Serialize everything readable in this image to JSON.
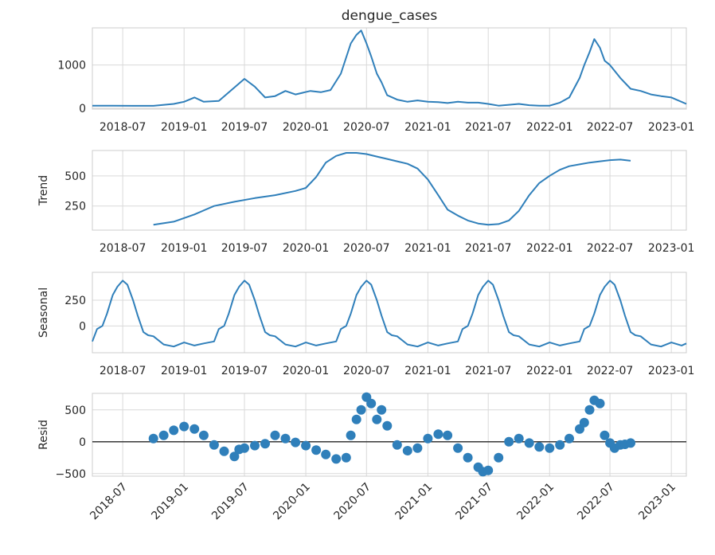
{
  "figure": {
    "title": "dengue_cases",
    "line_color": "#2f7fba",
    "grid_color": "#d9d9d9",
    "spine_color": "#cccccc",
    "zero_line_color": "#262626"
  },
  "x_ticks": [
    "2018-07",
    "2019-01",
    "2019-07",
    "2020-01",
    "2020-07",
    "2021-01",
    "2021-07",
    "2022-01",
    "2022-07",
    "2023-01"
  ],
  "chart_data": [
    {
      "type": "line",
      "panel": "observed",
      "title": "dengue_cases",
      "ylabel": "",
      "xlim": [
        "2018-04-01",
        "2023-02-15"
      ],
      "ylim": [
        -20,
        1860
      ],
      "yticks": [
        0,
        1000
      ],
      "x": [
        "2018-04-01",
        "2018-06-01",
        "2018-08-01",
        "2018-10-01",
        "2018-12-01",
        "2019-01-01",
        "2019-02-01",
        "2019-03-01",
        "2019-04-15",
        "2019-06-01",
        "2019-07-01",
        "2019-08-01",
        "2019-09-01",
        "2019-10-01",
        "2019-11-01",
        "2019-12-01",
        "2020-01-15",
        "2020-02-15",
        "2020-03-15",
        "2020-04-15",
        "2020-05-15",
        "2020-06-01",
        "2020-06-15",
        "2020-07-01",
        "2020-07-15",
        "2020-08-01",
        "2020-08-15",
        "2020-09-01",
        "2020-10-01",
        "2020-11-01",
        "2020-12-01",
        "2021-01-01",
        "2021-02-01",
        "2021-03-01",
        "2021-04-01",
        "2021-05-01",
        "2021-06-01",
        "2021-07-01",
        "2021-08-01",
        "2021-09-01",
        "2021-10-01",
        "2021-11-01",
        "2021-12-01",
        "2022-01-01",
        "2022-02-01",
        "2022-03-01",
        "2022-04-01",
        "2022-04-15",
        "2022-05-01",
        "2022-05-15",
        "2022-06-01",
        "2022-06-15",
        "2022-07-01",
        "2022-08-01",
        "2022-09-01",
        "2022-10-01",
        "2022-11-01",
        "2022-12-01",
        "2023-01-01",
        "2023-02-15"
      ],
      "series": [
        {
          "values": [
            60,
            60,
            55,
            55,
            100,
            150,
            250,
            150,
            170,
            480,
            680,
            500,
            250,
            280,
            400,
            320,
            400,
            370,
            420,
            800,
            1500,
            1700,
            1800,
            1500,
            1200,
            800,
            600,
            300,
            200,
            150,
            180,
            150,
            140,
            120,
            150,
            130,
            130,
            100,
            60,
            80,
            100,
            70,
            60,
            60,
            130,
            250,
            700,
            1000,
            1300,
            1600,
            1400,
            1100,
            1000,
            700,
            450,
            400,
            320,
            280,
            250,
            100
          ]
        }
      ]
    },
    {
      "type": "line",
      "panel": "trend",
      "ylabel": "Trend",
      "xlim": [
        "2018-04-01",
        "2023-02-15"
      ],
      "ylim": [
        50,
        710
      ],
      "yticks": [
        250,
        500
      ],
      "x": [
        "2018-10-01",
        "2018-12-01",
        "2019-02-01",
        "2019-04-01",
        "2019-06-01",
        "2019-08-01",
        "2019-10-01",
        "2019-12-01",
        "2020-01-01",
        "2020-02-01",
        "2020-03-01",
        "2020-04-01",
        "2020-05-01",
        "2020-06-01",
        "2020-07-01",
        "2020-08-01",
        "2020-09-01",
        "2020-10-01",
        "2020-11-01",
        "2020-12-01",
        "2021-01-01",
        "2021-02-01",
        "2021-03-01",
        "2021-04-01",
        "2021-05-01",
        "2021-06-01",
        "2021-07-01",
        "2021-08-01",
        "2021-09-01",
        "2021-10-01",
        "2021-11-01",
        "2021-12-01",
        "2022-01-01",
        "2022-02-01",
        "2022-03-01",
        "2022-04-01",
        "2022-05-01",
        "2022-06-01",
        "2022-07-01",
        "2022-08-01",
        "2022-09-01"
      ],
      "series": [
        {
          "values": [
            95,
            120,
            180,
            250,
            285,
            315,
            340,
            375,
            400,
            490,
            610,
            665,
            690,
            690,
            680,
            660,
            640,
            620,
            600,
            560,
            470,
            340,
            220,
            170,
            130,
            105,
            95,
            100,
            130,
            210,
            340,
            440,
            500,
            550,
            580,
            595,
            610,
            620,
            630,
            635,
            625
          ]
        }
      ]
    },
    {
      "type": "line",
      "panel": "seasonal",
      "ylabel": "Seasonal",
      "xlim": [
        "2018-04-01",
        "2023-02-15"
      ],
      "ylim": [
        -260,
        520
      ],
      "yticks": [
        0,
        250
      ],
      "x": [
        "2018-04-01",
        "2018-04-15",
        "2018-05-01",
        "2018-05-15",
        "2018-06-01",
        "2018-06-15",
        "2018-07-01",
        "2018-07-15",
        "2018-08-01",
        "2018-08-15",
        "2018-09-01",
        "2018-09-15",
        "2018-10-01",
        "2018-11-01",
        "2018-12-01",
        "2019-01-01",
        "2019-02-01",
        "2019-03-01",
        "2019-04-01",
        "2019-04-15",
        "2019-05-01",
        "2019-05-15",
        "2019-06-01",
        "2019-06-15",
        "2019-07-01",
        "2019-07-15",
        "2019-08-01",
        "2019-08-15",
        "2019-09-01",
        "2019-09-15",
        "2019-10-01",
        "2019-11-01",
        "2019-12-01",
        "2020-01-01",
        "2020-02-01",
        "2020-03-01",
        "2020-04-01",
        "2020-04-15",
        "2020-05-01",
        "2020-05-15",
        "2020-06-01",
        "2020-06-15",
        "2020-07-01",
        "2020-07-15",
        "2020-08-01",
        "2020-08-15",
        "2020-09-01",
        "2020-09-15",
        "2020-10-01",
        "2020-11-01",
        "2020-12-01",
        "2021-01-01",
        "2021-02-01",
        "2021-03-01",
        "2021-04-01",
        "2021-04-15",
        "2021-05-01",
        "2021-05-15",
        "2021-06-01",
        "2021-06-15",
        "2021-07-01",
        "2021-07-15",
        "2021-08-01",
        "2021-08-15",
        "2021-09-01",
        "2021-09-15",
        "2021-10-01",
        "2021-11-01",
        "2021-12-01",
        "2022-01-01",
        "2022-02-01",
        "2022-03-01",
        "2022-04-01",
        "2022-04-15",
        "2022-05-01",
        "2022-05-15",
        "2022-06-01",
        "2022-06-15",
        "2022-07-01",
        "2022-07-15",
        "2022-08-01",
        "2022-08-15",
        "2022-09-01",
        "2022-09-15",
        "2022-10-01",
        "2022-11-01",
        "2022-12-01",
        "2023-01-01",
        "2023-02-01",
        "2023-02-15"
      ],
      "series": [
        {
          "values": [
            -150,
            -30,
            0,
            120,
            300,
            380,
            440,
            400,
            250,
            100,
            -60,
            -90,
            -100,
            -180,
            -200,
            -160,
            -190,
            -170,
            -150,
            -30,
            0,
            120,
            300,
            380,
            440,
            400,
            250,
            100,
            -60,
            -90,
            -100,
            -180,
            -200,
            -160,
            -190,
            -170,
            -150,
            -30,
            0,
            120,
            300,
            380,
            440,
            400,
            250,
            100,
            -60,
            -90,
            -100,
            -180,
            -200,
            -160,
            -190,
            -170,
            -150,
            -30,
            0,
            120,
            300,
            380,
            440,
            400,
            250,
            100,
            -60,
            -90,
            -100,
            -180,
            -200,
            -160,
            -190,
            -170,
            -150,
            -30,
            0,
            120,
            300,
            380,
            440,
            400,
            250,
            100,
            -60,
            -90,
            -100,
            -180,
            -200,
            -160,
            -190,
            -170
          ]
        }
      ]
    },
    {
      "type": "scatter",
      "panel": "resid",
      "ylabel": "Resid",
      "xlim": [
        "2018-04-01",
        "2023-02-15"
      ],
      "ylim": [
        -540,
        760
      ],
      "yticks": [
        -500,
        0,
        500
      ],
      "hline": 0,
      "x": [
        "2018-10-01",
        "2018-11-01",
        "2018-12-01",
        "2019-01-01",
        "2019-02-01",
        "2019-03-01",
        "2019-04-01",
        "2019-05-01",
        "2019-06-01",
        "2019-06-15",
        "2019-07-01",
        "2019-08-01",
        "2019-09-01",
        "2019-10-01",
        "2019-11-01",
        "2019-12-01",
        "2020-01-01",
        "2020-02-01",
        "2020-03-01",
        "2020-04-01",
        "2020-05-01",
        "2020-05-15",
        "2020-06-01",
        "2020-06-15",
        "2020-07-01",
        "2020-07-15",
        "2020-08-01",
        "2020-08-15",
        "2020-09-01",
        "2020-10-01",
        "2020-11-01",
        "2020-12-01",
        "2021-01-01",
        "2021-02-01",
        "2021-03-01",
        "2021-04-01",
        "2021-05-01",
        "2021-06-01",
        "2021-06-15",
        "2021-07-01",
        "2021-08-01",
        "2021-09-01",
        "2021-10-01",
        "2021-11-01",
        "2021-12-01",
        "2022-01-01",
        "2022-02-01",
        "2022-03-01",
        "2022-04-01",
        "2022-04-15",
        "2022-05-01",
        "2022-05-15",
        "2022-06-01",
        "2022-06-15",
        "2022-07-01",
        "2022-07-15",
        "2022-08-01",
        "2022-08-15",
        "2022-09-01"
      ],
      "series": [
        {
          "values": [
            50,
            100,
            180,
            240,
            200,
            100,
            -50,
            -150,
            -230,
            -120,
            -100,
            -60,
            -30,
            100,
            50,
            -10,
            -60,
            -130,
            -200,
            -270,
            -250,
            100,
            350,
            500,
            700,
            600,
            350,
            500,
            250,
            -50,
            -140,
            -100,
            50,
            120,
            100,
            -100,
            -250,
            -400,
            -470,
            -450,
            -250,
            0,
            50,
            -20,
            -80,
            -100,
            -50,
            50,
            200,
            300,
            500,
            650,
            600,
            100,
            -20,
            -100,
            -50,
            -40,
            -20
          ]
        }
      ]
    }
  ]
}
